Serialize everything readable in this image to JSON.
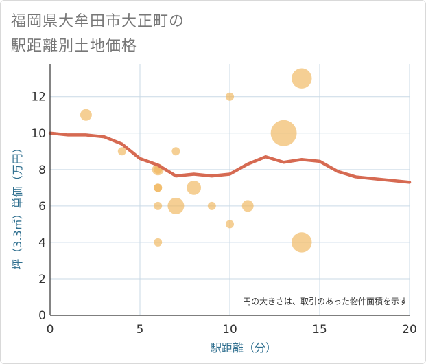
{
  "title_lines": [
    "福岡県大牟田市大正町の",
    "駅距離別土地価格"
  ],
  "chart_data": {
    "type": "scatter",
    "title": "福岡県大牟田市大正町の駅距離別土地価格",
    "xlabel": "駅距離（分）",
    "ylabel": "坪（3.3㎡）単価（万円）",
    "xlim": [
      0,
      20
    ],
    "ylim": [
      0,
      13.8
    ],
    "xticks": [
      0,
      5,
      10,
      15,
      20
    ],
    "yticks": [
      0,
      2,
      4,
      6,
      8,
      10,
      12
    ],
    "grid": true,
    "annotation": "円の大きさは、取引のあった物件面積を示す",
    "colors": {
      "bubble": "#f0b55a",
      "line": "#d66a52",
      "grid": "#c9d9e6"
    },
    "bubbles": [
      {
        "x": 2,
        "y": 11,
        "size": 2
      },
      {
        "x": 4,
        "y": 9,
        "size": 1
      },
      {
        "x": 6,
        "y": 8,
        "size": 2
      },
      {
        "x": 6,
        "y": 8,
        "size": 1
      },
      {
        "x": 6,
        "y": 7,
        "size": 1
      },
      {
        "x": 6,
        "y": 7,
        "size": 1
      },
      {
        "x": 6,
        "y": 6,
        "size": 1
      },
      {
        "x": 6,
        "y": 4,
        "size": 1
      },
      {
        "x": 7,
        "y": 9,
        "size": 1
      },
      {
        "x": 7,
        "y": 6,
        "size": 4
      },
      {
        "x": 8,
        "y": 7,
        "size": 3
      },
      {
        "x": 9,
        "y": 6,
        "size": 1
      },
      {
        "x": 10,
        "y": 12,
        "size": 1
      },
      {
        "x": 10,
        "y": 5,
        "size": 1
      },
      {
        "x": 11,
        "y": 6,
        "size": 2
      },
      {
        "x": 13,
        "y": 10,
        "size": 10
      },
      {
        "x": 14,
        "y": 13,
        "size": 6
      },
      {
        "x": 14,
        "y": 4,
        "size": 6
      }
    ],
    "trend": {
      "x": [
        0,
        1,
        2,
        3,
        4,
        5,
        6,
        7,
        8,
        9,
        10,
        11,
        12,
        13,
        14,
        15,
        16,
        17,
        18,
        19,
        20
      ],
      "y": [
        10.0,
        9.9,
        9.9,
        9.8,
        9.4,
        8.6,
        8.25,
        7.65,
        7.75,
        7.65,
        7.75,
        8.3,
        8.7,
        8.4,
        8.55,
        8.45,
        7.9,
        7.6,
        7.5,
        7.4,
        7.3
      ]
    }
  }
}
